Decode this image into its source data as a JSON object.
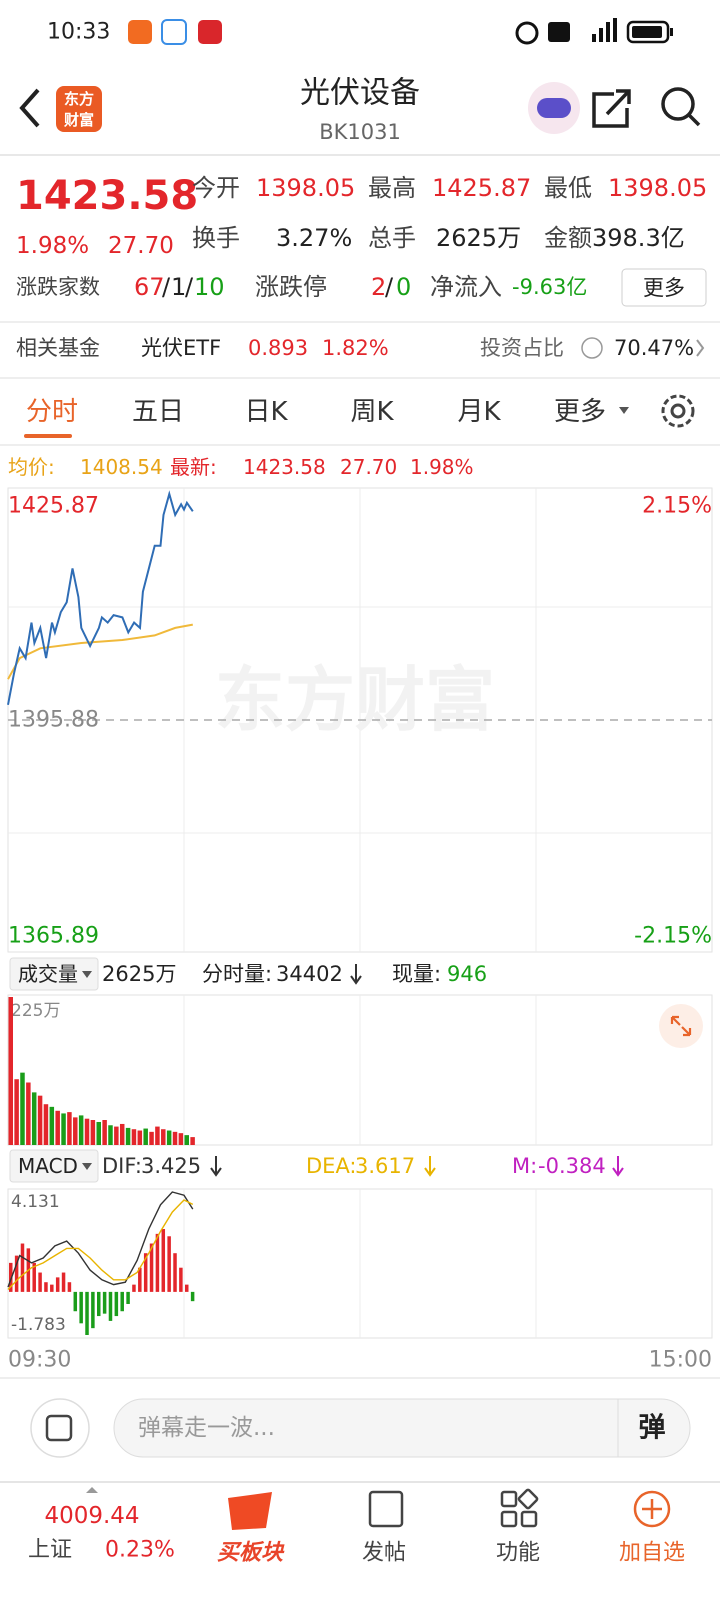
{
  "status_bar": {
    "time": "10:33"
  },
  "header": {
    "logo": [
      "东方",
      "财富"
    ],
    "title": "光伏设备",
    "code": "BK1031"
  },
  "quote": {
    "price": "1423.58",
    "change_pct": "1.98%",
    "change": "27.70",
    "stats": [
      {
        "label": "今开",
        "value": "1398.05"
      },
      {
        "label": "最高",
        "value": "1425.87"
      },
      {
        "label": "最低",
        "value": "1398.05"
      },
      {
        "label": "换手",
        "value": "3.27%"
      },
      {
        "label": "总手",
        "value": "2625万"
      },
      {
        "label": "金额",
        "value": "398.3亿"
      }
    ],
    "breadth": {
      "label": "涨跌家数",
      "up": "67",
      "flat": "1",
      "down": "10",
      "separator": "/"
    },
    "limit": {
      "label": "涨跌停",
      "up": "2",
      "down": "0"
    },
    "net_inflow": {
      "label": "净流入",
      "value": "-9.63亿"
    },
    "more_button": "更多"
  },
  "fund": {
    "label": "相关基金",
    "name": "光伏ETF",
    "price": "0.893",
    "change_pct": "1.82%",
    "ratio_label": "投资占比",
    "ratio": "70.47%"
  },
  "tabs": [
    "分时",
    "五日",
    "日K",
    "周K",
    "月K",
    "更多"
  ],
  "info": {
    "avg_label": "均价:",
    "avg": "1408.54",
    "latest_label": "最新:",
    "latest": "1423.58",
    "change": "27.70",
    "change_pct": "1.98%"
  },
  "chart_data": [
    {
      "type": "line",
      "watermark": "东方财富",
      "xlim": [
        0,
        240
      ],
      "xticks": [
        {
          "value": 0,
          "label": "09:30"
        },
        {
          "value": 240,
          "label": "15:00"
        }
      ],
      "ylim": [
        1365.89,
        1425.87
      ],
      "yticks": [
        1425.87,
        1395.88,
        1365.89
      ],
      "y2lim": [
        -2.15,
        2.15
      ],
      "y2ticks": [
        {
          "value": 2.15,
          "label": "2.15%"
        },
        {
          "value": -2.15,
          "label": "-2.15%"
        }
      ],
      "series": [
        {
          "color": "#2f6db5",
          "x": [
            0,
            2,
            4,
            6,
            8,
            9,
            11,
            13,
            15,
            16,
            18,
            20,
            22,
            24,
            25,
            28,
            31,
            32,
            34,
            36,
            39,
            41,
            43,
            45,
            46,
            50,
            52,
            53,
            55,
            57,
            59,
            60,
            61,
            63
          ],
          "values": [
            1397.9,
            1402.0,
            1405.4,
            1404.1,
            1408.8,
            1406.1,
            1408.1,
            1404.1,
            1408.8,
            1407.5,
            1410.2,
            1411.5,
            1416.0,
            1412.2,
            1408.1,
            1405.7,
            1408.1,
            1409.5,
            1408.8,
            1409.8,
            1409.5,
            1407.5,
            1408.8,
            1408.1,
            1412.9,
            1419.0,
            1419.0,
            1423.1,
            1425.87,
            1423.1,
            1424.5,
            1423.8,
            1424.7,
            1423.58
          ]
        },
        {
          "color": "#f0b93a",
          "x": [
            0,
            4,
            11,
            25,
            39,
            50,
            57,
            63
          ],
          "values": [
            1401.3,
            1404.1,
            1405.4,
            1406.1,
            1406.5,
            1407.1,
            1408.1,
            1408.54
          ]
        }
      ]
    },
    {
      "type": "bar",
      "title": "成交量",
      "total": "2625万",
      "label_minute": "分时量:",
      "minute_volume": 34402,
      "label_now": "现量:",
      "now_volume": 946,
      "xlim": [
        0,
        240
      ],
      "ylim": [
        0,
        225
      ],
      "yticks": [
        {
          "value": 225,
          "label": "225万"
        }
      ],
      "x": [
        0,
        2,
        4,
        6,
        8,
        10,
        12,
        14,
        16,
        18,
        20,
        22,
        24,
        26,
        28,
        30,
        32,
        34,
        36,
        38,
        40,
        42,
        44,
        46,
        48,
        50,
        52,
        54,
        56,
        58,
        60,
        62
      ],
      "values": [
        225,
        100,
        110,
        95,
        80,
        75,
        62,
        58,
        52,
        48,
        50,
        42,
        45,
        40,
        38,
        35,
        38,
        30,
        28,
        32,
        26,
        24,
        22,
        25,
        20,
        28,
        24,
        22,
        20,
        18,
        15,
        12
      ],
      "colors": [
        "#e3262b",
        "#e3262b",
        "#1a9d1a",
        "#e3262b",
        "#1a9d1a",
        "#e3262b",
        "#e3262b",
        "#1a9d1a",
        "#e3262b",
        "#1a9d1a",
        "#e3262b",
        "#e3262b",
        "#1a9d1a",
        "#e3262b",
        "#e3262b",
        "#1a9d1a",
        "#e3262b",
        "#1a9d1a",
        "#e3262b",
        "#e3262b",
        "#1a9d1a",
        "#e3262b",
        "#e3262b",
        "#1a9d1a",
        "#e3262b",
        "#e3262b",
        "#e3262b",
        "#1a9d1a",
        "#e3262b",
        "#e3262b",
        "#1a9d1a",
        "#e3262b"
      ]
    },
    {
      "type": "macd",
      "title": "MACD",
      "hist_name": "M:",
      "hist_color": "#c020c0",
      "up_color": "#e3262b",
      "down_color": "#1a9d1a",
      "xlim": [
        0,
        240
      ],
      "ylim": [
        -1.783,
        4.131
      ],
      "yticks": [
        4.131,
        -1.783
      ],
      "x": [
        0,
        2,
        4,
        6,
        8,
        10,
        12,
        14,
        16,
        18,
        20,
        22,
        24,
        26,
        28,
        30,
        32,
        34,
        36,
        38,
        40,
        42,
        44,
        46,
        48,
        50,
        52,
        54,
        56,
        58,
        60,
        62
      ],
      "values": [
        1.2,
        1.5,
        2.0,
        1.8,
        1.2,
        0.8,
        0.4,
        0.3,
        0.6,
        0.8,
        0.4,
        -0.8,
        -1.3,
        -1.783,
        -1.5,
        -1.0,
        -0.9,
        -1.2,
        -1.0,
        -0.8,
        -0.5,
        0.3,
        1.0,
        1.6,
        2.0,
        2.4,
        2.6,
        2.3,
        1.6,
        1.0,
        0.3,
        -0.384
      ],
      "series": [
        {
          "name": "DIF:",
          "color": "#333333",
          "x": [
            0,
            4,
            8,
            12,
            16,
            20,
            24,
            28,
            32,
            36,
            40,
            44,
            48,
            52,
            56,
            60,
            63
          ],
          "values": [
            0.2,
            1.5,
            1.2,
            1.4,
            1.9,
            2.1,
            1.6,
            0.9,
            0.5,
            0.3,
            0.4,
            1.3,
            2.6,
            3.6,
            4.131,
            4.0,
            3.425
          ]
        },
        {
          "name": "DEA:",
          "color": "#e8b400",
          "x": [
            0,
            4,
            8,
            12,
            16,
            20,
            24,
            28,
            32,
            36,
            40,
            44,
            48,
            52,
            56,
            60,
            63
          ],
          "values": [
            0.1,
            0.6,
            1.0,
            1.2,
            1.5,
            1.8,
            1.8,
            1.4,
            0.9,
            0.5,
            0.5,
            0.8,
            1.6,
            2.5,
            3.3,
            3.8,
            3.617
          ]
        }
      ]
    }
  ],
  "input": {
    "placeholder": "弹幕走一波...",
    "button": "弹"
  },
  "nav": {
    "index_value": "4009.44",
    "index_name": "上证",
    "index_change": "0.23%",
    "items": [
      "买板块",
      "发帖",
      "功能",
      "加自选"
    ]
  }
}
